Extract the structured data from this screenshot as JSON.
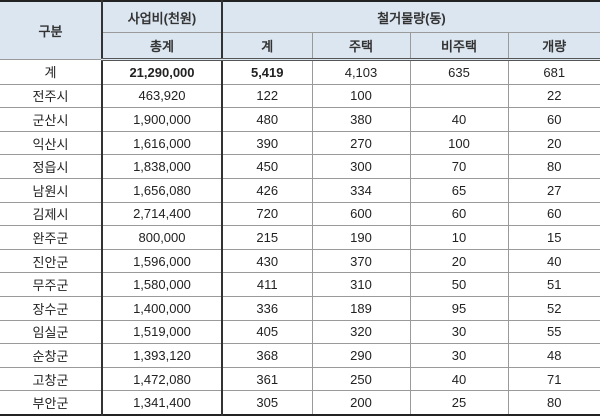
{
  "header": {
    "category": "구분",
    "cost_group": "사업비(천원)",
    "cost_total": "총계",
    "demolition_group": "철거물량(동)",
    "sum": "계",
    "housing": "주택",
    "non_housing": "비주택",
    "barn": "개량"
  },
  "rows": [
    {
      "name": "계",
      "cost": "21,290,000",
      "sum": "5,419",
      "housing": "4,103",
      "non_housing": "635",
      "barn": "681"
    },
    {
      "name": "전주시",
      "cost": "463,920",
      "sum": "122",
      "housing": "100",
      "non_housing": "",
      "barn": "22"
    },
    {
      "name": "군산시",
      "cost": "1,900,000",
      "sum": "480",
      "housing": "380",
      "non_housing": "40",
      "barn": "60"
    },
    {
      "name": "익산시",
      "cost": "1,616,000",
      "sum": "390",
      "housing": "270",
      "non_housing": "100",
      "barn": "20"
    },
    {
      "name": "정읍시",
      "cost": "1,838,000",
      "sum": "450",
      "housing": "300",
      "non_housing": "70",
      "barn": "80"
    },
    {
      "name": "남원시",
      "cost": "1,656,080",
      "sum": "426",
      "housing": "334",
      "non_housing": "65",
      "barn": "27"
    },
    {
      "name": "김제시",
      "cost": "2,714,400",
      "sum": "720",
      "housing": "600",
      "non_housing": "60",
      "barn": "60"
    },
    {
      "name": "완주군",
      "cost": "800,000",
      "sum": "215",
      "housing": "190",
      "non_housing": "10",
      "barn": "15"
    },
    {
      "name": "진안군",
      "cost": "1,596,000",
      "sum": "430",
      "housing": "370",
      "non_housing": "20",
      "barn": "40"
    },
    {
      "name": "무주군",
      "cost": "1,580,000",
      "sum": "411",
      "housing": "310",
      "non_housing": "50",
      "barn": "51"
    },
    {
      "name": "장수군",
      "cost": "1,400,000",
      "sum": "336",
      "housing": "189",
      "non_housing": "95",
      "barn": "52"
    },
    {
      "name": "임실군",
      "cost": "1,519,000",
      "sum": "405",
      "housing": "320",
      "non_housing": "30",
      "barn": "55"
    },
    {
      "name": "순창군",
      "cost": "1,393,120",
      "sum": "368",
      "housing": "290",
      "non_housing": "30",
      "barn": "48"
    },
    {
      "name": "고창군",
      "cost": "1,472,080",
      "sum": "361",
      "housing": "250",
      "non_housing": "40",
      "barn": "71"
    },
    {
      "name": "부안군",
      "cost": "1,341,400",
      "sum": "305",
      "housing": "200",
      "non_housing": "25",
      "barn": "80"
    }
  ]
}
